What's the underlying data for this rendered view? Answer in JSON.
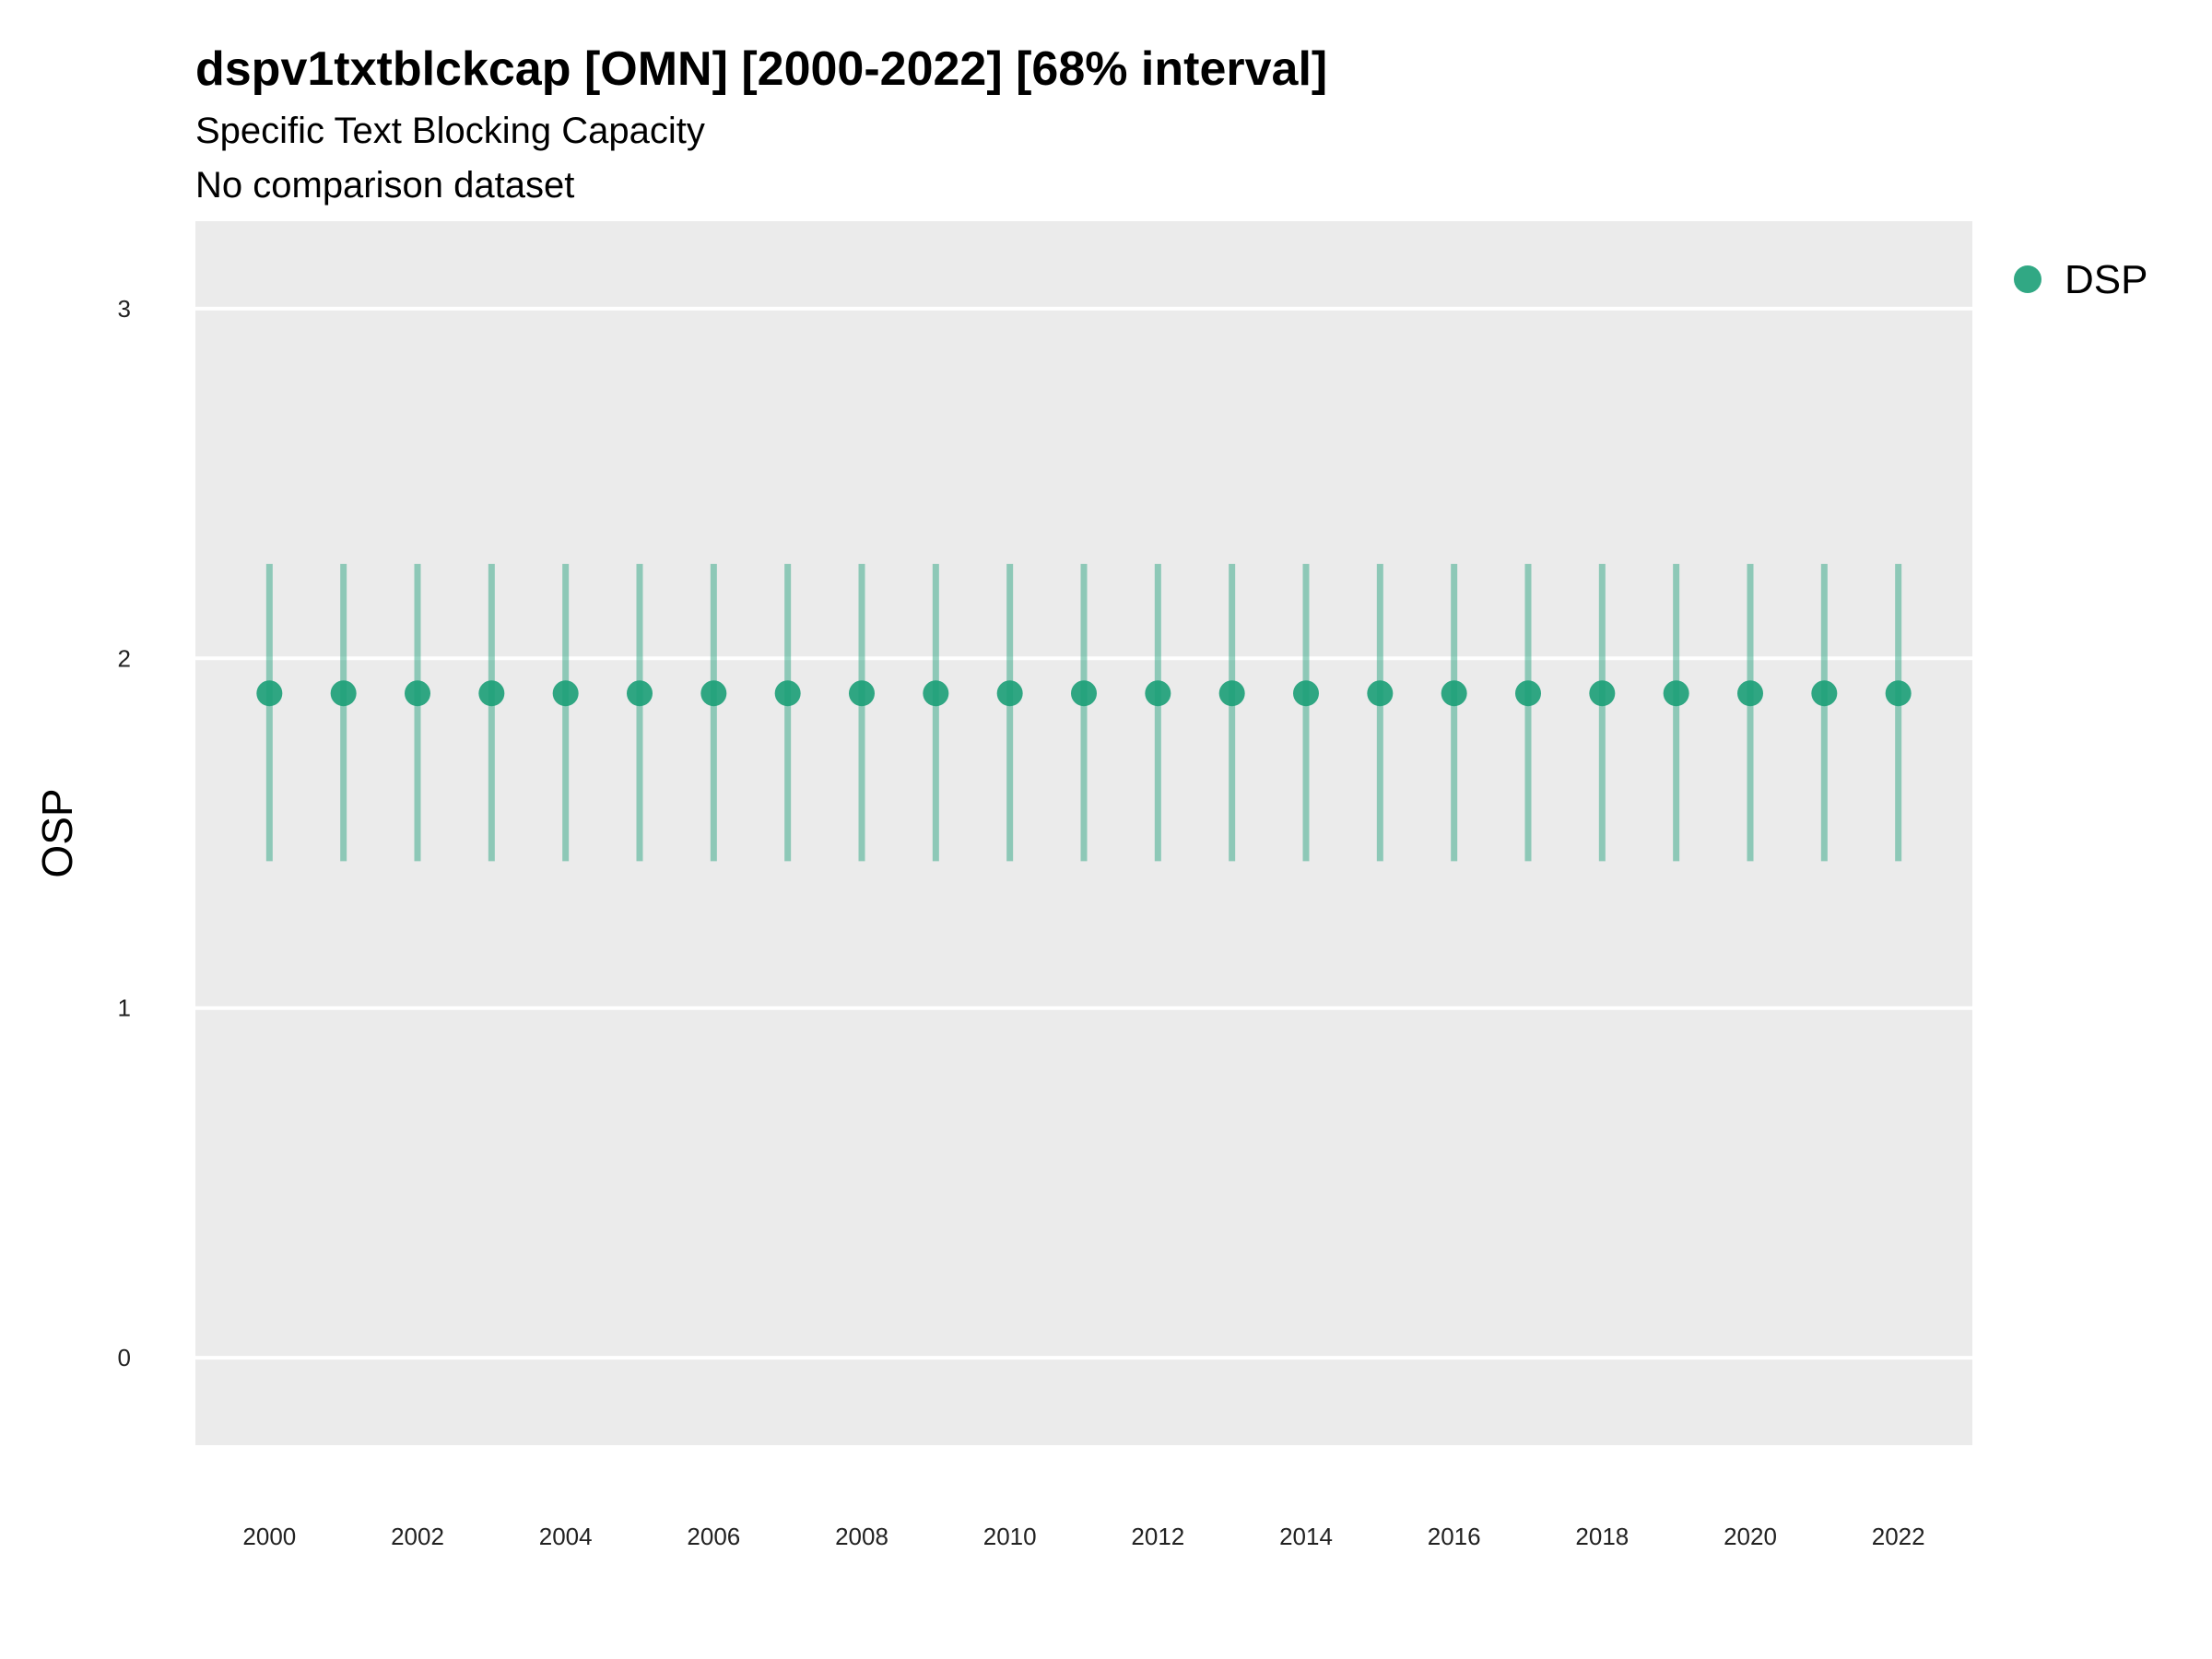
{
  "chart_data": {
    "type": "scatter",
    "title": "dspv1txtblckcap [OMN] [2000-2022] [68% interval]",
    "subtitle": "Specific Text Blocking Capacity",
    "caption_line2": "No comparison dataset",
    "xlabel": "",
    "ylabel": "OSP",
    "xlim": [
      1999,
      2023
    ],
    "ylim": [
      -0.25,
      3.25
    ],
    "x_ticks": [
      2000,
      2002,
      2004,
      2006,
      2008,
      2010,
      2012,
      2014,
      2016,
      2018,
      2020,
      2022
    ],
    "y_ticks": [
      0,
      1,
      2,
      3
    ],
    "grid": true,
    "legend_position": "top-right",
    "series": [
      {
        "name": "DSP",
        "color": "#1b9e77",
        "x": [
          2000,
          2001,
          2002,
          2003,
          2004,
          2005,
          2006,
          2007,
          2008,
          2009,
          2010,
          2011,
          2012,
          2013,
          2014,
          2015,
          2016,
          2017,
          2018,
          2019,
          2020,
          2021,
          2022
        ],
        "y": [
          1.9,
          1.9,
          1.9,
          1.9,
          1.9,
          1.9,
          1.9,
          1.9,
          1.9,
          1.9,
          1.9,
          1.9,
          1.9,
          1.9,
          1.9,
          1.9,
          1.9,
          1.9,
          1.9,
          1.9,
          1.9,
          1.9,
          1.9
        ],
        "lower": [
          1.42,
          1.42,
          1.42,
          1.42,
          1.42,
          1.42,
          1.42,
          1.42,
          1.42,
          1.42,
          1.42,
          1.42,
          1.42,
          1.42,
          1.42,
          1.42,
          1.42,
          1.42,
          1.42,
          1.42,
          1.42,
          1.42,
          1.42
        ],
        "upper": [
          2.27,
          2.27,
          2.27,
          2.27,
          2.27,
          2.27,
          2.27,
          2.27,
          2.27,
          2.27,
          2.27,
          2.27,
          2.27,
          2.27,
          2.27,
          2.27,
          2.27,
          2.27,
          2.27,
          2.27,
          2.27,
          2.27,
          2.27
        ]
      }
    ],
    "panel_background": "#ebebeb",
    "grid_color": "#ffffff"
  }
}
